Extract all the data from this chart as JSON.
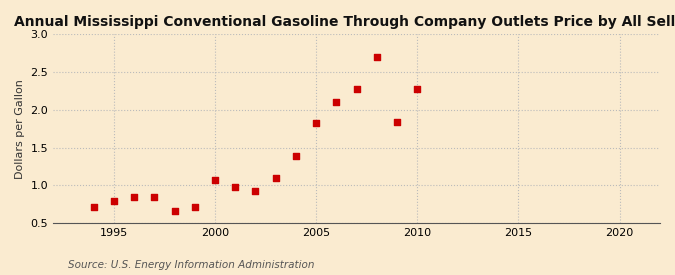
{
  "title": "Annual Mississippi Conventional Gasoline Through Company Outlets Price by All Sellers",
  "ylabel": "Dollars per Gallon",
  "source": "Source: U.S. Energy Information Administration",
  "years": [
    1994,
    1995,
    1996,
    1997,
    1998,
    1999,
    2000,
    2001,
    2002,
    2003,
    2004,
    2005,
    2006,
    2007,
    2008,
    2009,
    2010
  ],
  "values": [
    0.71,
    0.79,
    0.84,
    0.84,
    0.66,
    0.72,
    1.07,
    0.98,
    0.92,
    1.1,
    1.39,
    1.82,
    2.1,
    2.27,
    2.7,
    1.84,
    2.27
  ],
  "xlim": [
    1992,
    2022
  ],
  "ylim": [
    0.5,
    3.0
  ],
  "yticks": [
    0.5,
    1.0,
    1.5,
    2.0,
    2.5,
    3.0
  ],
  "xticks": [
    1995,
    2000,
    2005,
    2010,
    2015,
    2020
  ],
  "marker_color": "#cc0000",
  "marker_size": 4,
  "bg_color": "#faebd0",
  "grid_color": "#bbbbbb",
  "title_fontsize": 10,
  "label_fontsize": 8,
  "tick_fontsize": 8,
  "source_fontsize": 7.5
}
